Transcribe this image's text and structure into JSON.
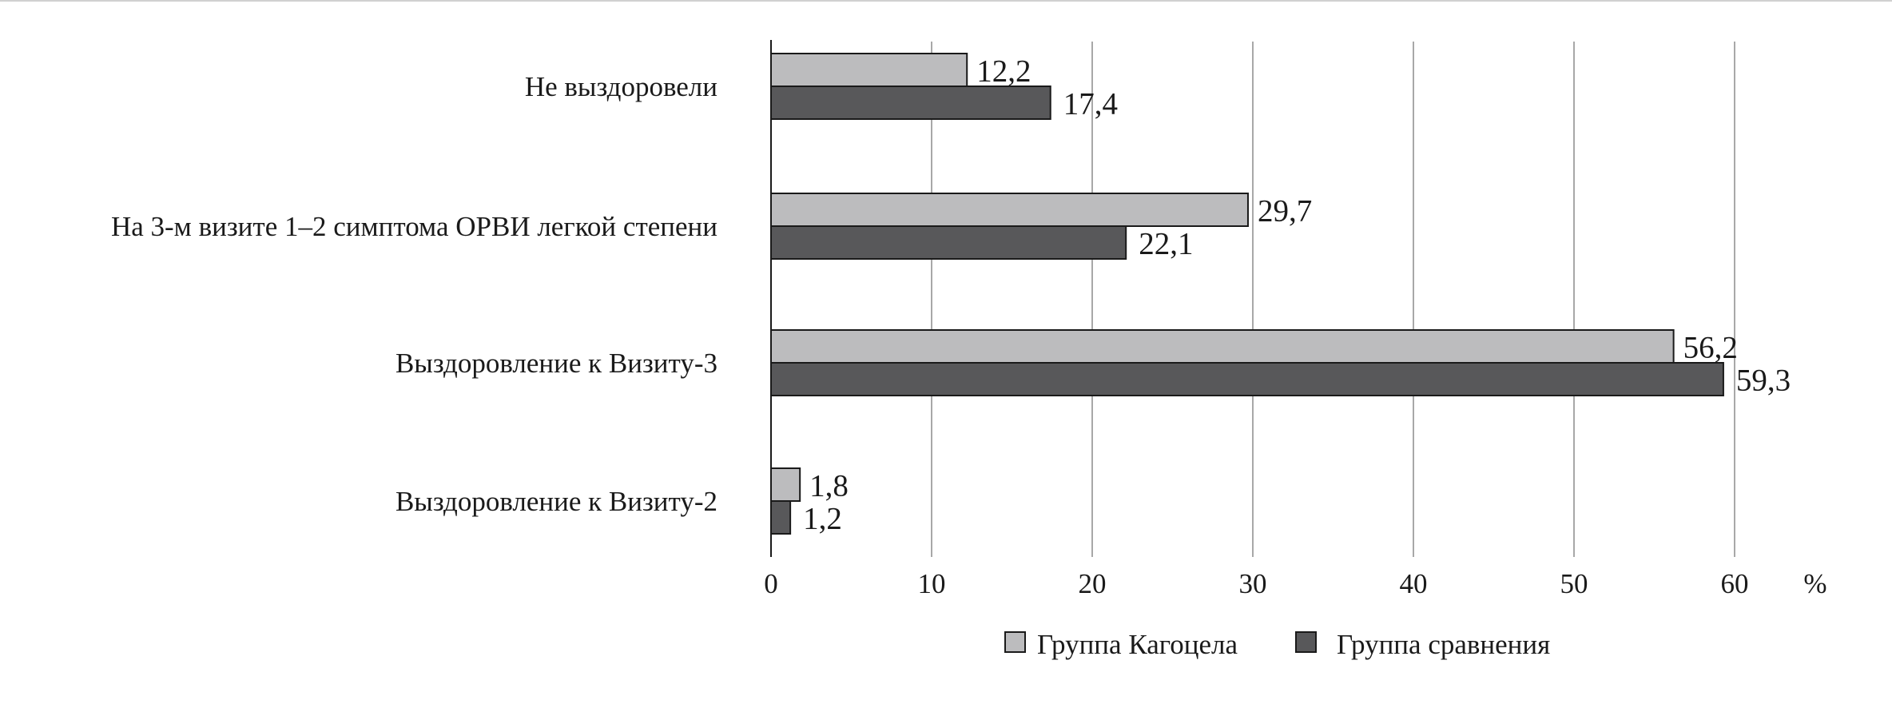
{
  "chart_data": {
    "type": "bar",
    "orientation": "horizontal",
    "categories": [
      "Не выздоровели",
      "На 3-м визите 1–2 симптома ОРВИ легкой степени",
      "Выздоровление к Визиту-3",
      "Выздоровление к Визиту-2"
    ],
    "series": [
      {
        "name": "Группа Кагоцела",
        "values": [
          12.2,
          29.7,
          56.2,
          1.8
        ],
        "value_labels": [
          "12,2",
          "29,7",
          "56,2",
          "1,8"
        ],
        "color": "#bcbcbe"
      },
      {
        "name": "Группа сравнения",
        "values": [
          17.4,
          22.1,
          59.3,
          1.2
        ],
        "value_labels": [
          "17,4",
          "22,1",
          "59,3",
          "1,2"
        ],
        "color": "#58585a"
      }
    ],
    "x_ticks": [
      "0",
      "10",
      "20",
      "30",
      "40",
      "50",
      "60"
    ],
    "x_unit": "%",
    "xlim": [
      0,
      60
    ],
    "grid": "vertical",
    "legend_position": "bottom"
  }
}
